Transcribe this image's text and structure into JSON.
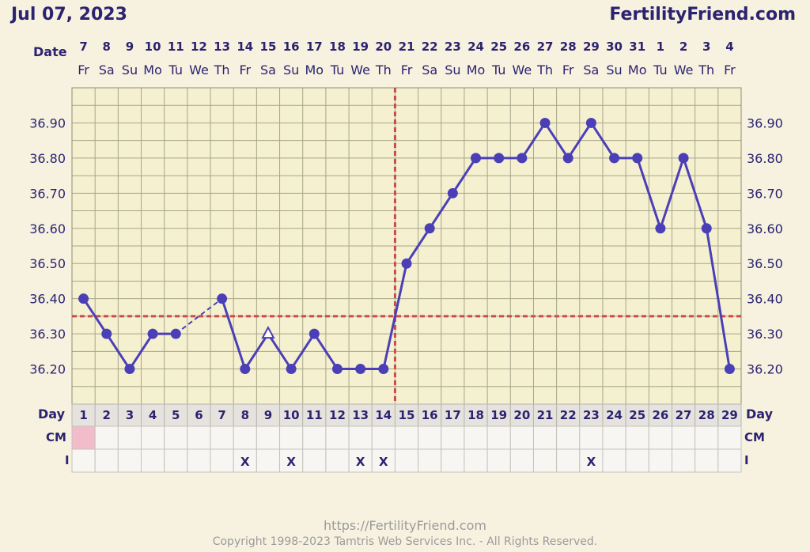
{
  "header": {
    "date_title": "Jul 07, 2023",
    "brand": "FertilityFriend.com"
  },
  "footer": {
    "url": "https://FertilityFriend.com",
    "copyright": "Copyright 1998-2023 Tamtris Web Services Inc. - All Rights Reserved."
  },
  "labels": {
    "date": "Date",
    "day": "Day",
    "cm": "CM",
    "i": "I"
  },
  "colors": {
    "line": "#4b3fb8",
    "grid": "#a7a58a",
    "plot_bg": "#f5f0cf",
    "coverline": "#c94b4b",
    "period": "#f2bccb"
  },
  "chart_data": {
    "type": "line",
    "dates": [
      "7",
      "8",
      "9",
      "10",
      "11",
      "12",
      "13",
      "14",
      "15",
      "16",
      "17",
      "18",
      "19",
      "20",
      "21",
      "22",
      "23",
      "24",
      "25",
      "26",
      "27",
      "28",
      "29",
      "30",
      "31",
      "1",
      "2",
      "3",
      "4"
    ],
    "weekdays": [
      "Fr",
      "Sa",
      "Su",
      "Mo",
      "Tu",
      "We",
      "Th",
      "Fr",
      "Sa",
      "Su",
      "Mo",
      "Tu",
      "We",
      "Th",
      "Fr",
      "Sa",
      "Su",
      "Mo",
      "Tu",
      "We",
      "Th",
      "Fr",
      "Sa",
      "Su",
      "Mo",
      "Tu",
      "We",
      "Th",
      "Fr"
    ],
    "days": [
      1,
      2,
      3,
      4,
      5,
      6,
      7,
      8,
      9,
      10,
      11,
      12,
      13,
      14,
      15,
      16,
      17,
      18,
      19,
      20,
      21,
      22,
      23,
      24,
      25,
      26,
      27,
      28,
      29
    ],
    "temperatures": [
      36.4,
      36.3,
      36.2,
      36.3,
      36.3,
      null,
      36.4,
      36.2,
      36.3,
      36.2,
      36.3,
      36.2,
      36.2,
      36.2,
      36.5,
      36.6,
      36.7,
      36.8,
      36.8,
      36.8,
      36.9,
      36.8,
      36.9,
      36.8,
      36.8,
      36.6,
      36.8,
      36.6,
      36.2
    ],
    "open_marker_days": [
      9
    ],
    "dashed_segment_days": [
      5,
      7
    ],
    "y_ticks": [
      "36.90",
      "36.80",
      "36.70",
      "36.60",
      "36.50",
      "36.40",
      "36.30",
      "36.20"
    ],
    "ylim": [
      36.1,
      37.0
    ],
    "coverline": 36.35,
    "ovulation_day": 14,
    "cm_marked_days": [
      1
    ],
    "intercourse_days": [
      8,
      10,
      13,
      14,
      23
    ],
    "intercourse_mark": "X",
    "grid": true
  }
}
